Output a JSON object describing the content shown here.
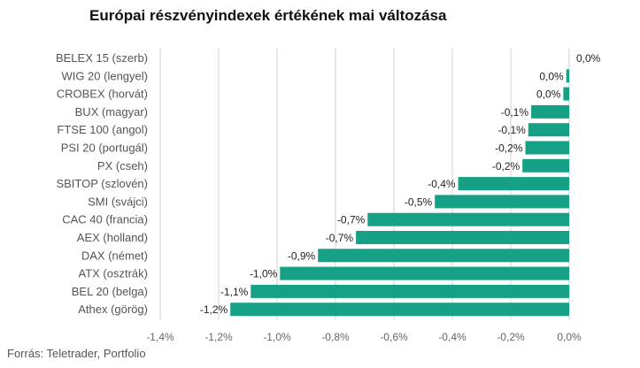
{
  "chart_data": {
    "type": "bar",
    "orientation": "horizontal",
    "title": "Európai részvényindexek értékének mai változása",
    "source": "Forrás: Teletrader, Portfolio",
    "categories": [
      "BELEX 15 (szerb)",
      "WIG 20 (lengyel)",
      "CROBEX (horvát)",
      "BUX (magyar)",
      "FTSE 100 (angol)",
      "PSI 20 (portugál)",
      "PX (cseh)",
      "SBITOP (szlovén)",
      "SMI (svájci)",
      "CAC 40 (francia)",
      "AEX (holland)",
      "DAX (német)",
      "ATX (osztrák)",
      "BEL 20 (belga)",
      "Athex (görög)"
    ],
    "values": [
      0.0,
      -0.01,
      -0.02,
      -0.13,
      -0.14,
      -0.15,
      -0.16,
      -0.38,
      -0.46,
      -0.69,
      -0.73,
      -0.86,
      -0.99,
      -1.09,
      -1.16
    ],
    "data_labels": [
      "0,0%",
      "0,0%",
      "0,0%",
      "-0,1%",
      "-0,1%",
      "-0,2%",
      "-0,2%",
      "-0,4%",
      "-0,5%",
      "-0,7%",
      "-0,7%",
      "-0,9%",
      "-1,0%",
      "-1,1%",
      "-1,2%"
    ],
    "xlim": [
      -1.4,
      0.0
    ],
    "xticks": [
      -1.4,
      -1.2,
      -1.0,
      -0.8,
      -0.6,
      -0.4,
      -0.2,
      0.0
    ],
    "xtick_labels": [
      "-1,4%",
      "-1,2%",
      "-1,0%",
      "-0,8%",
      "-0,6%",
      "-0,4%",
      "-0,2%",
      "0,0%"
    ],
    "grid": true,
    "bar_color": "#16a085"
  }
}
